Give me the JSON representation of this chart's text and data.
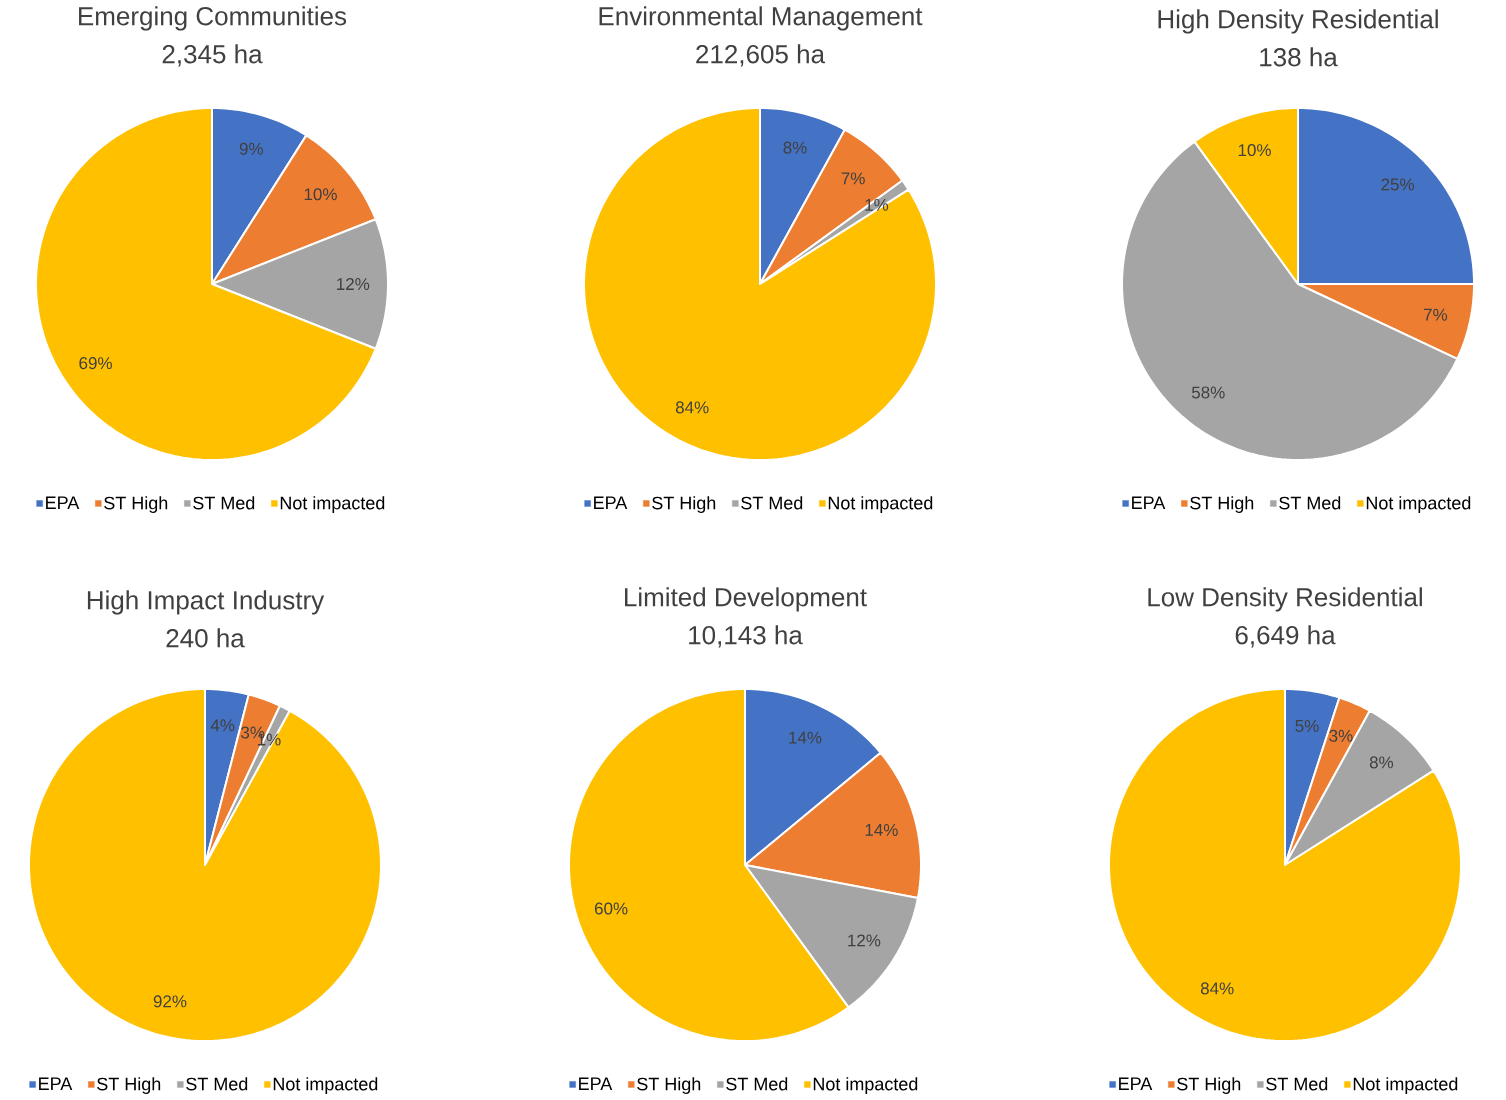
{
  "chart_data": [
    {
      "type": "pie",
      "title": "Emerging Communities",
      "subtitle": "2,345 ha",
      "categories": [
        "EPA",
        "ST High",
        "ST Med",
        "Not impacted"
      ],
      "values": [
        9,
        10,
        12,
        69
      ],
      "value_labels": [
        "9%",
        "10%",
        "12%",
        "69%"
      ],
      "colors": [
        "#4472c4",
        "#ed7d31",
        "#a5a5a5",
        "#ffc000"
      ],
      "legend": "bottom"
    },
    {
      "type": "pie",
      "title": "Environmental Management",
      "subtitle": "212,605 ha",
      "categories": [
        "EPA",
        "ST High",
        "ST Med",
        "Not impacted"
      ],
      "values": [
        8,
        7,
        1,
        84
      ],
      "value_labels": [
        "8%",
        "7%",
        "1%",
        "84%"
      ],
      "colors": [
        "#4472c4",
        "#ed7d31",
        "#a5a5a5",
        "#ffc000"
      ],
      "legend": "bottom"
    },
    {
      "type": "pie",
      "title": "High Density Residential",
      "subtitle": "138 ha",
      "categories": [
        "EPA",
        "ST High",
        "ST Med",
        "Not impacted"
      ],
      "values": [
        25,
        7,
        58,
        10
      ],
      "value_labels": [
        "25%",
        "7%",
        "58%",
        "10%"
      ],
      "colors": [
        "#4472c4",
        "#ed7d31",
        "#a5a5a5",
        "#ffc000"
      ],
      "legend": "bottom"
    },
    {
      "type": "pie",
      "title": "High Impact Industry",
      "subtitle": "240 ha",
      "categories": [
        "EPA",
        "ST High",
        "ST Med",
        "Not impacted"
      ],
      "values": [
        4,
        3,
        1,
        92
      ],
      "value_labels": [
        "4%",
        "3%",
        "1%",
        "92%"
      ],
      "colors": [
        "#4472c4",
        "#ed7d31",
        "#a5a5a5",
        "#ffc000"
      ],
      "legend": "bottom"
    },
    {
      "type": "pie",
      "title": "Limited Development",
      "subtitle": "10,143 ha",
      "categories": [
        "EPA",
        "ST High",
        "ST Med",
        "Not impacted"
      ],
      "values": [
        14,
        14,
        12,
        60
      ],
      "value_labels": [
        "14%",
        "14%",
        "12%",
        "60%"
      ],
      "colors": [
        "#4472c4",
        "#ed7d31",
        "#a5a5a5",
        "#ffc000"
      ],
      "legend": "bottom"
    },
    {
      "type": "pie",
      "title": "Low Density Residential",
      "subtitle": "6,649 ha",
      "categories": [
        "EPA",
        "ST High",
        "ST Med",
        "Not impacted"
      ],
      "values": [
        5,
        3,
        8,
        84
      ],
      "value_labels": [
        "5%",
        "3%",
        "8%",
        "84%"
      ],
      "colors": [
        "#4472c4",
        "#ed7d31",
        "#a5a5a5",
        "#ffc000"
      ],
      "legend": "bottom"
    }
  ]
}
